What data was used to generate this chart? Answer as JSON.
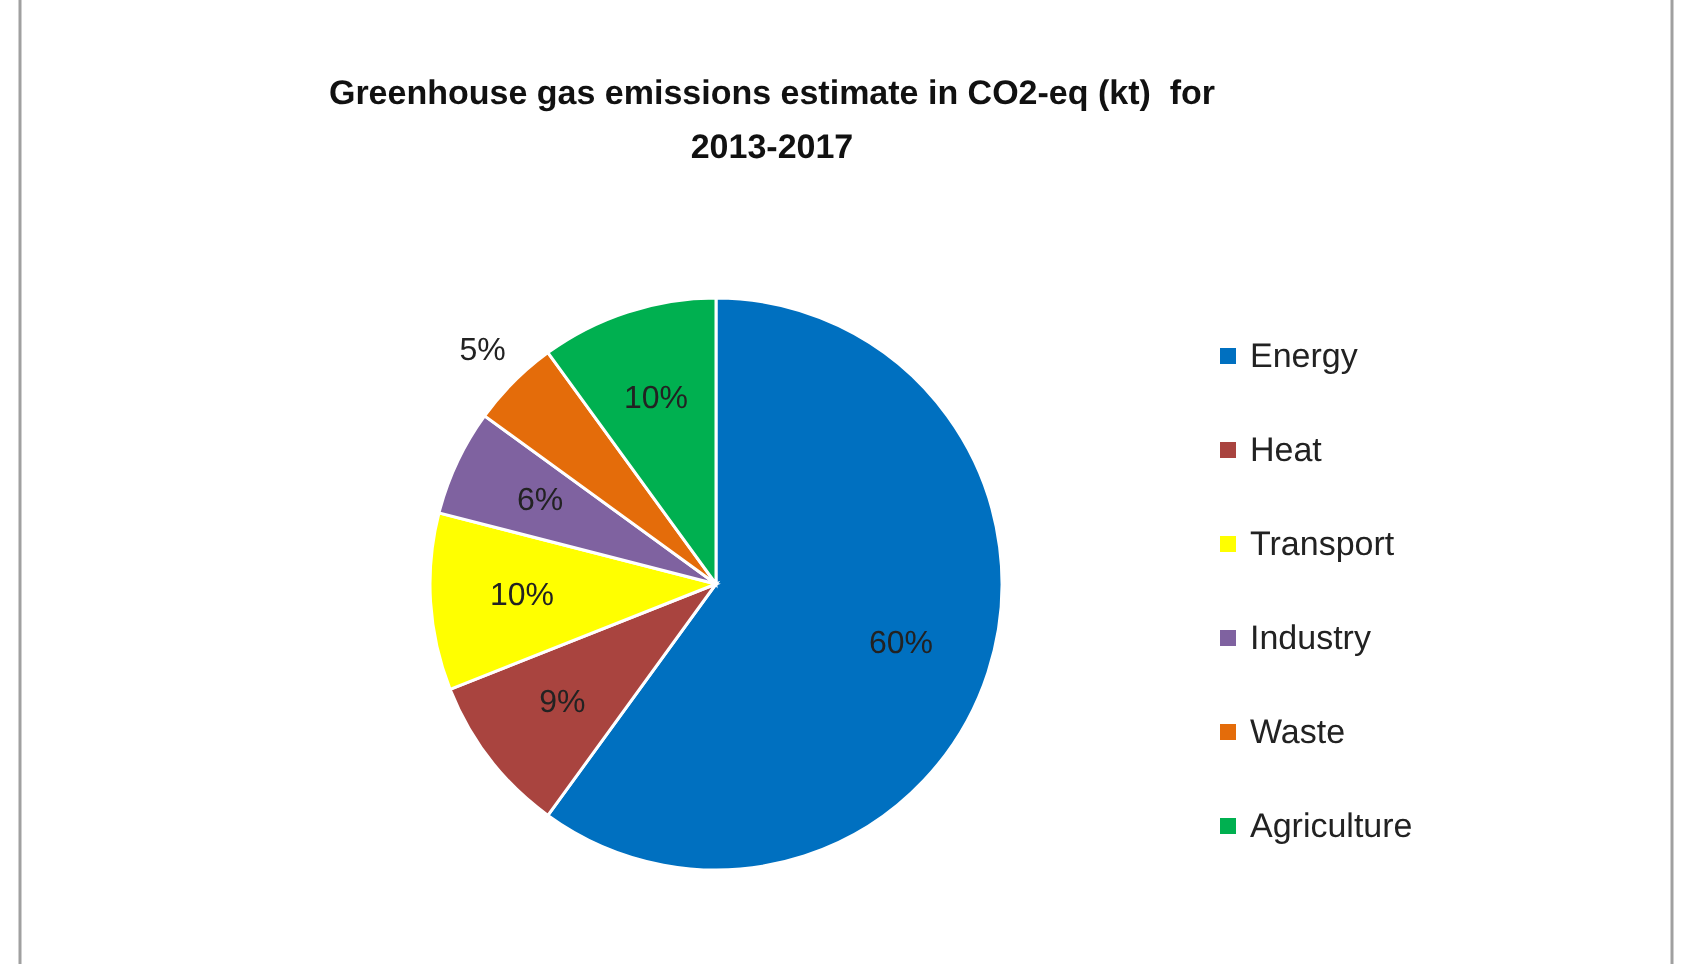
{
  "chart_data": {
    "type": "pie",
    "title": "Greenhouse gas emissions estimate in CO2-eq (kt)  for\n2013-2017",
    "categories": [
      "Energy",
      "Heat",
      "Transport",
      "Industry",
      "Waste",
      "Agriculture"
    ],
    "values": [
      60,
      9,
      10,
      6,
      5,
      10
    ],
    "colors": [
      "#0070c0",
      "#a9443f",
      "#ffff00",
      "#7f62a0",
      "#e46c0a",
      "#00b050"
    ],
    "value_labels": [
      "60%",
      "9%",
      "10%",
      "6%",
      "5%",
      "10%"
    ],
    "legend": "right"
  }
}
